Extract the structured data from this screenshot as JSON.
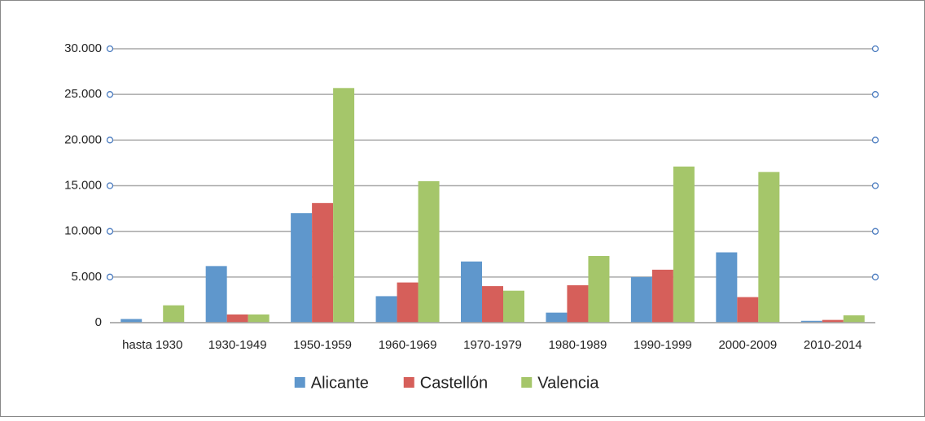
{
  "chart_data": {
    "type": "bar",
    "categories": [
      "hasta 1930",
      "1930-1949",
      "1950-1959",
      "1960-1969",
      "1970-1979",
      "1980-1989",
      "1990-1999",
      "2000-2009",
      "2010-2014"
    ],
    "series": [
      {
        "name": "Alicante",
        "color": "#5f97cc",
        "values": [
          400,
          6200,
          12000,
          2900,
          6700,
          1100,
          5000,
          7700,
          200
        ]
      },
      {
        "name": "Castellón",
        "color": "#d65f5a",
        "values": [
          0,
          900,
          13100,
          4400,
          4000,
          4100,
          5800,
          2800,
          300
        ]
      },
      {
        "name": "Valencia",
        "color": "#a5c66a",
        "values": [
          1900,
          900,
          25700,
          15500,
          3500,
          7300,
          17100,
          16500,
          800
        ]
      }
    ],
    "ylim": [
      0,
      30000
    ],
    "yticks": [
      0,
      {
        "value": 5000,
        "label": "5.000"
      },
      {
        "value": 10000,
        "label": "10.000"
      },
      {
        "value": 15000,
        "label": "15.000"
      },
      {
        "value": 20000,
        "label": "20.000"
      },
      {
        "value": 25000,
        "label": "25.000"
      },
      {
        "value": 30000,
        "label": "30.000"
      }
    ],
    "grid": true,
    "legend": "bottom"
  }
}
